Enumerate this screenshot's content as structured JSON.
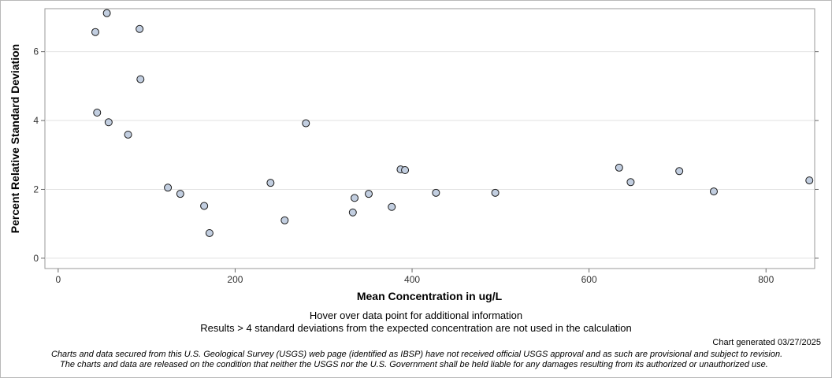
{
  "chart_data": {
    "type": "scatter",
    "title": "",
    "xlabel": "Mean Concentration in ug/L",
    "ylabel": "Percent Relative Standard Deviation",
    "xlim": [
      -15,
      855
    ],
    "ylim": [
      -0.3,
      7.25
    ],
    "xticks": [
      0,
      200,
      400,
      600,
      800
    ],
    "yticks": [
      0,
      2,
      4,
      6
    ],
    "grid": true,
    "points": [
      {
        "x": 42,
        "y": 6.57
      },
      {
        "x": 55,
        "y": 7.12
      },
      {
        "x": 92,
        "y": 6.66
      },
      {
        "x": 93,
        "y": 5.2
      },
      {
        "x": 44,
        "y": 4.23
      },
      {
        "x": 57,
        "y": 3.95
      },
      {
        "x": 79,
        "y": 3.59
      },
      {
        "x": 124,
        "y": 2.05
      },
      {
        "x": 138,
        "y": 1.87
      },
      {
        "x": 165,
        "y": 1.52
      },
      {
        "x": 171,
        "y": 0.73
      },
      {
        "x": 240,
        "y": 2.19
      },
      {
        "x": 256,
        "y": 1.1
      },
      {
        "x": 280,
        "y": 3.92
      },
      {
        "x": 333,
        "y": 1.33
      },
      {
        "x": 335,
        "y": 1.75
      },
      {
        "x": 351,
        "y": 1.87
      },
      {
        "x": 377,
        "y": 1.49
      },
      {
        "x": 387,
        "y": 2.58
      },
      {
        "x": 392,
        "y": 2.56
      },
      {
        "x": 427,
        "y": 1.9
      },
      {
        "x": 494,
        "y": 1.9
      },
      {
        "x": 634,
        "y": 2.63
      },
      {
        "x": 647,
        "y": 2.21
      },
      {
        "x": 702,
        "y": 2.53
      },
      {
        "x": 741,
        "y": 1.94
      },
      {
        "x": 849,
        "y": 2.26
      }
    ],
    "marker_fill": "#c2cee0",
    "marker_stroke": "#1a1a1a"
  },
  "notes": {
    "hover": "Hover over data point for additional information",
    "results": "Results > 4 standard deviations from the expected concentration are not used in the calculation"
  },
  "generated": "Chart generated 03/27/2025",
  "disclaimer": {
    "line1": "Charts and data secured from this U.S. Geological Survey (USGS) web page (identified as IBSP) have not received official USGS approval and as such are provisional and subject to revision.",
    "line2": "The charts and data are released on the condition that neither the USGS nor the U.S. Government shall be held liable for any damages resulting from its authorized or unauthorized use."
  }
}
